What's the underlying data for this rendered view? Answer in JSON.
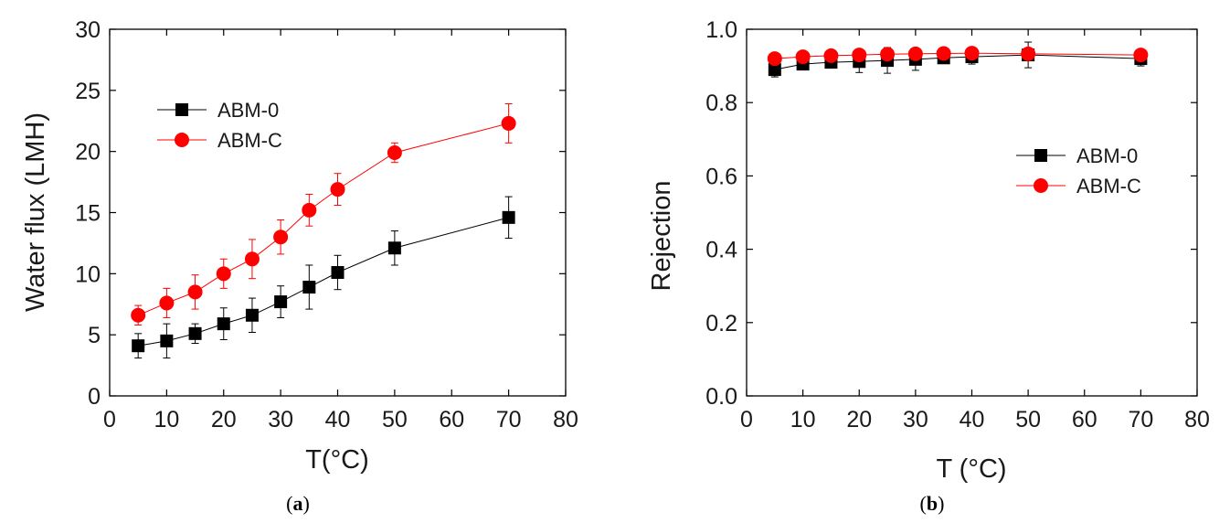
{
  "chart_data": [
    {
      "type": "line",
      "panel_label": "(a)",
      "panel_open": "(",
      "panel_letter": "a",
      "panel_close": ")",
      "xlabel": "T(°C)",
      "ylabel": "Water flux (LMH)",
      "xlim": [
        0,
        80
      ],
      "ylim": [
        0,
        30
      ],
      "xticks": [
        0,
        10,
        20,
        30,
        40,
        50,
        60,
        70,
        80
      ],
      "yticks": [
        0,
        5,
        10,
        15,
        20,
        25,
        30
      ],
      "legend_position": "upper-left",
      "x": [
        5,
        10,
        15,
        20,
        25,
        30,
        35,
        40,
        50,
        70
      ],
      "series": [
        {
          "name": "ABM-0",
          "marker": "square",
          "color": "#000000",
          "values": [
            4.1,
            4.5,
            5.1,
            5.9,
            6.6,
            7.7,
            8.9,
            10.1,
            12.1,
            14.6
          ],
          "errors": [
            1.0,
            1.4,
            0.8,
            1.3,
            1.4,
            1.3,
            1.8,
            1.4,
            1.4,
            1.7
          ]
        },
        {
          "name": "ABM-C",
          "marker": "circle",
          "color": "#ff0000",
          "values": [
            6.6,
            7.6,
            8.5,
            10.0,
            11.2,
            13.0,
            15.2,
            16.9,
            19.9,
            22.3
          ],
          "errors": [
            0.8,
            1.2,
            1.4,
            1.2,
            1.6,
            1.4,
            1.3,
            1.3,
            0.8,
            1.6
          ]
        }
      ]
    },
    {
      "type": "line",
      "panel_label": "(b)",
      "panel_open": "(",
      "panel_letter": "b",
      "panel_close": ")",
      "xlabel": "T (°C)",
      "ylabel": "Rejection",
      "xlim": [
        0,
        80
      ],
      "ylim": [
        0,
        1.0
      ],
      "xticks": [
        0,
        10,
        20,
        30,
        40,
        50,
        60,
        70,
        80
      ],
      "yticks": [
        "0.0",
        "0.2",
        "0.4",
        "0.6",
        "0.8",
        "1.0"
      ],
      "legend_position": "center-right",
      "x": [
        5,
        10,
        15,
        20,
        25,
        30,
        35,
        40,
        50,
        70
      ],
      "series": [
        {
          "name": "ABM-0",
          "marker": "square",
          "color": "#000000",
          "values": [
            0.89,
            0.905,
            0.91,
            0.912,
            0.915,
            0.918,
            0.922,
            0.925,
            0.93,
            0.92
          ],
          "errors": [
            0.02,
            0.015,
            0.015,
            0.03,
            0.035,
            0.03,
            0.015,
            0.02,
            0.035,
            0.02
          ]
        },
        {
          "name": "ABM-C",
          "marker": "circle",
          "color": "#ff0000",
          "values": [
            0.92,
            0.925,
            0.928,
            0.93,
            0.932,
            0.933,
            0.934,
            0.935,
            0.933,
            0.93
          ],
          "errors": [
            0.01,
            0.01,
            0.01,
            0.01,
            0.01,
            0.01,
            0.01,
            0.01,
            0.01,
            0.01
          ]
        }
      ]
    }
  ]
}
